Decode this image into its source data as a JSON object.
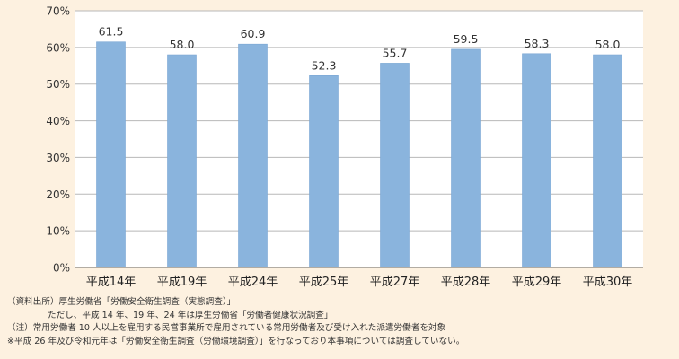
{
  "chart_data": {
    "type": "bar",
    "categories": [
      "平成14年",
      "平成19年",
      "平成24年",
      "平成25年",
      "平成27年",
      "平成28年",
      "平成29年",
      "平成30年"
    ],
    "values": [
      61.5,
      58.0,
      60.9,
      52.3,
      55.7,
      59.5,
      58.3,
      58.0
    ],
    "value_labels": [
      "61.5",
      "58.0",
      "60.9",
      "52.3",
      "55.7",
      "59.5",
      "58.3",
      "58.0"
    ],
    "ylim": [
      0,
      70
    ],
    "yticks": [
      0,
      10,
      20,
      30,
      40,
      50,
      60,
      70
    ],
    "ytick_labels": [
      "0%",
      "10%",
      "20%",
      "30%",
      "40%",
      "50%",
      "60%",
      "70%"
    ],
    "grid": true,
    "colors": {
      "bar": "#8ab4dd",
      "bar_edge": "#7aa6d3",
      "grid": "#b8b8b8",
      "plot_background": "#ffffff",
      "page_background": "#fdf1e0"
    }
  },
  "notes": {
    "source": "（資料出所）厚生労働省「労働安全衛生調査（実態調査）」",
    "source_detail": "ただし、平成 14 年、19 年、24 年は厚生労働省「労働者健康状況調査」",
    "note": "（注）常用労働者 10 人以上を雇用する民営事業所で雇用されている常用労働者及び受け入れた派遣労働者を対象",
    "remark": "※平成 26 年及び令和元年は「労働安全衛生調査（労働環境調査）」を行なっており本事項については調査していない。"
  }
}
